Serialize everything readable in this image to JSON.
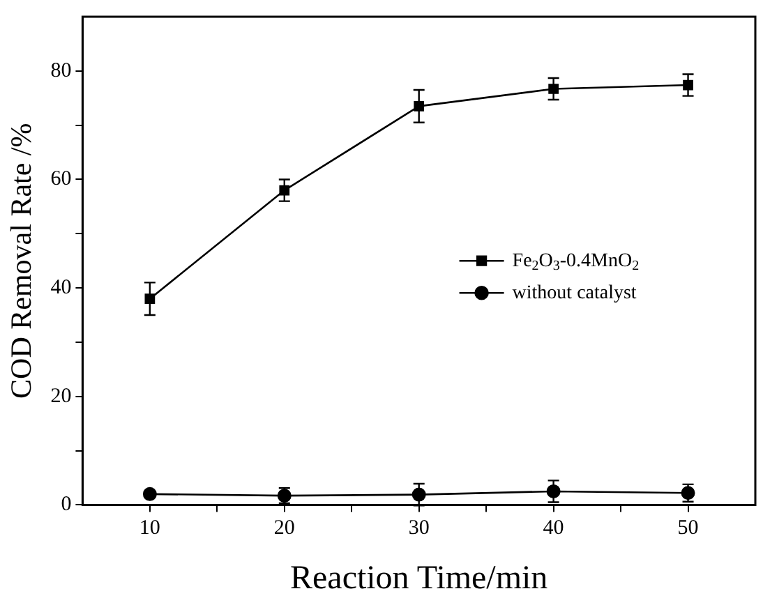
{
  "chart_data": {
    "type": "line",
    "xlabel": "Reaction Time/min",
    "ylabel": "COD Removal Rate /%",
    "x": [
      10,
      20,
      30,
      40,
      50
    ],
    "xlim": [
      5,
      55
    ],
    "xticks": [
      10,
      {
        "value": 15,
        "label": null
      },
      20,
      {
        "value": 25,
        "label": null
      },
      30,
      {
        "value": 35,
        "label": null
      },
      40,
      {
        "value": 45,
        "label": null
      },
      50
    ],
    "ylim": [
      0,
      90
    ],
    "yticks": [
      0,
      {
        "value": 10,
        "label": null
      },
      20,
      {
        "value": 30,
        "label": null
      },
      40,
      {
        "value": 50,
        "label": null
      },
      60,
      {
        "value": 70,
        "label": null
      },
      80
    ],
    "grid": false,
    "legend": "right",
    "series": [
      {
        "name": "Fe$_{2}$O$_{3}$-0.4MnO$_{2}$",
        "color": "#000000",
        "marker": "square",
        "values": [
          38,
          58,
          73.5,
          76.7,
          77.4
        ],
        "errors": [
          3,
          2,
          3,
          2,
          2
        ]
      },
      {
        "name": "without catalyst",
        "color": "#000000",
        "marker": "circle",
        "values": [
          2,
          1.7,
          1.9,
          2.5,
          2.2
        ],
        "errors": [
          0.6,
          1.4,
          2,
          2,
          1.6
        ]
      }
    ]
  }
}
